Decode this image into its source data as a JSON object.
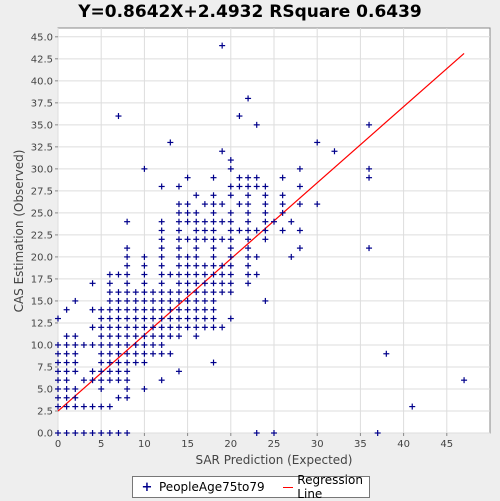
{
  "chart_data": {
    "type": "scatter",
    "title": "Y=0.8642X+2.4932    RSquare 0.6439",
    "xlabel": "SAR Prediction (Expected)",
    "ylabel": "CAS Estimation (Observed)",
    "xlim": [
      0,
      50
    ],
    "ylim": [
      0,
      46
    ],
    "x_ticks": [
      "0",
      "5",
      "10",
      "15",
      "20",
      "25",
      "30",
      "35",
      "40",
      "45"
    ],
    "y_ticks": [
      "0.0",
      "2.5",
      "5.0",
      "7.5",
      "10.0",
      "12.5",
      "15.0",
      "17.5",
      "20.0",
      "22.5",
      "25.0",
      "27.5",
      "30.0",
      "32.5",
      "35.0",
      "37.5",
      "40.0",
      "42.5",
      "45.0"
    ],
    "grid": true,
    "legend_position": "bottom",
    "series": [
      {
        "name": "PeopleAge75to79",
        "kind": "points",
        "color": "#00008b",
        "marker": "plus",
        "points": [
          [
            0,
            0
          ],
          [
            1,
            0
          ],
          [
            2,
            0
          ],
          [
            3,
            0
          ],
          [
            4,
            0
          ],
          [
            5,
            0
          ],
          [
            6,
            0
          ],
          [
            7,
            0
          ],
          [
            8,
            0
          ],
          [
            23,
            0
          ],
          [
            25,
            0
          ],
          [
            37,
            0
          ],
          [
            0,
            3
          ],
          [
            1,
            3
          ],
          [
            2,
            3
          ],
          [
            3,
            3
          ],
          [
            4,
            3
          ],
          [
            5,
            3
          ],
          [
            6,
            3
          ],
          [
            41,
            3
          ],
          [
            0,
            4
          ],
          [
            1,
            4
          ],
          [
            2,
            4
          ],
          [
            7,
            4
          ],
          [
            8,
            4
          ],
          [
            0,
            5
          ],
          [
            1,
            5
          ],
          [
            2,
            5
          ],
          [
            5,
            5
          ],
          [
            8,
            5
          ],
          [
            10,
            5
          ],
          [
            0,
            6
          ],
          [
            1,
            6
          ],
          [
            3,
            6
          ],
          [
            4,
            6
          ],
          [
            5,
            6
          ],
          [
            6,
            6
          ],
          [
            7,
            6
          ],
          [
            8,
            6
          ],
          [
            12,
            6
          ],
          [
            47,
            6
          ],
          [
            0,
            7
          ],
          [
            1,
            7
          ],
          [
            2,
            7
          ],
          [
            4,
            7
          ],
          [
            5,
            7
          ],
          [
            6,
            7
          ],
          [
            7,
            7
          ],
          [
            8,
            7
          ],
          [
            14,
            7
          ],
          [
            0,
            8
          ],
          [
            1,
            8
          ],
          [
            2,
            8
          ],
          [
            5,
            8
          ],
          [
            6,
            8
          ],
          [
            7,
            8
          ],
          [
            8,
            8
          ],
          [
            9,
            8
          ],
          [
            10,
            8
          ],
          [
            18,
            8
          ],
          [
            0,
            9
          ],
          [
            1,
            9
          ],
          [
            2,
            9
          ],
          [
            5,
            9
          ],
          [
            6,
            9
          ],
          [
            7,
            9
          ],
          [
            8,
            9
          ],
          [
            9,
            9
          ],
          [
            10,
            9
          ],
          [
            11,
            9
          ],
          [
            12,
            9
          ],
          [
            13,
            9
          ],
          [
            38,
            9
          ],
          [
            0,
            10
          ],
          [
            1,
            10
          ],
          [
            2,
            10
          ],
          [
            3,
            10
          ],
          [
            4,
            10
          ],
          [
            5,
            10
          ],
          [
            6,
            10
          ],
          [
            7,
            10
          ],
          [
            8,
            10
          ],
          [
            9,
            10
          ],
          [
            10,
            10
          ],
          [
            11,
            10
          ],
          [
            12,
            10
          ],
          [
            1,
            11
          ],
          [
            2,
            11
          ],
          [
            5,
            11
          ],
          [
            6,
            11
          ],
          [
            7,
            11
          ],
          [
            8,
            11
          ],
          [
            9,
            11
          ],
          [
            10,
            11
          ],
          [
            11,
            11
          ],
          [
            12,
            11
          ],
          [
            13,
            11
          ],
          [
            14,
            11
          ],
          [
            16,
            11
          ],
          [
            4,
            12
          ],
          [
            5,
            12
          ],
          [
            6,
            12
          ],
          [
            7,
            12
          ],
          [
            8,
            12
          ],
          [
            9,
            12
          ],
          [
            10,
            12
          ],
          [
            11,
            12
          ],
          [
            12,
            12
          ],
          [
            13,
            12
          ],
          [
            14,
            12
          ],
          [
            15,
            12
          ],
          [
            16,
            12
          ],
          [
            17,
            12
          ],
          [
            18,
            12
          ],
          [
            19,
            12
          ],
          [
            0,
            13
          ],
          [
            5,
            13
          ],
          [
            6,
            13
          ],
          [
            7,
            13
          ],
          [
            8,
            13
          ],
          [
            9,
            13
          ],
          [
            10,
            13
          ],
          [
            11,
            13
          ],
          [
            12,
            13
          ],
          [
            13,
            13
          ],
          [
            14,
            13
          ],
          [
            15,
            13
          ],
          [
            16,
            13
          ],
          [
            17,
            13
          ],
          [
            18,
            13
          ],
          [
            20,
            13
          ],
          [
            1,
            14
          ],
          [
            4,
            14
          ],
          [
            5,
            14
          ],
          [
            6,
            14
          ],
          [
            7,
            14
          ],
          [
            8,
            14
          ],
          [
            9,
            14
          ],
          [
            10,
            14
          ],
          [
            11,
            14
          ],
          [
            12,
            14
          ],
          [
            13,
            14
          ],
          [
            14,
            14
          ],
          [
            15,
            14
          ],
          [
            16,
            14
          ],
          [
            17,
            14
          ],
          [
            18,
            14
          ],
          [
            2,
            15
          ],
          [
            6,
            15
          ],
          [
            7,
            15
          ],
          [
            8,
            15
          ],
          [
            9,
            15
          ],
          [
            10,
            15
          ],
          [
            11,
            15
          ],
          [
            12,
            15
          ],
          [
            13,
            15
          ],
          [
            14,
            15
          ],
          [
            15,
            15
          ],
          [
            16,
            15
          ],
          [
            17,
            15
          ],
          [
            18,
            15
          ],
          [
            24,
            15
          ],
          [
            6,
            16
          ],
          [
            7,
            16
          ],
          [
            8,
            16
          ],
          [
            9,
            16
          ],
          [
            10,
            16
          ],
          [
            11,
            16
          ],
          [
            12,
            16
          ],
          [
            13,
            16
          ],
          [
            14,
            16
          ],
          [
            15,
            16
          ],
          [
            16,
            16
          ],
          [
            17,
            16
          ],
          [
            18,
            16
          ],
          [
            19,
            16
          ],
          [
            20,
            16
          ],
          [
            4,
            17
          ],
          [
            6,
            17
          ],
          [
            8,
            17
          ],
          [
            10,
            17
          ],
          [
            12,
            17
          ],
          [
            14,
            17
          ],
          [
            15,
            17
          ],
          [
            16,
            17
          ],
          [
            17,
            17
          ],
          [
            18,
            17
          ],
          [
            19,
            17
          ],
          [
            20,
            17
          ],
          [
            22,
            17
          ],
          [
            6,
            18
          ],
          [
            7,
            18
          ],
          [
            8,
            18
          ],
          [
            10,
            18
          ],
          [
            12,
            18
          ],
          [
            13,
            18
          ],
          [
            14,
            18
          ],
          [
            15,
            18
          ],
          [
            16,
            18
          ],
          [
            17,
            18
          ],
          [
            18,
            18
          ],
          [
            19,
            18
          ],
          [
            20,
            18
          ],
          [
            22,
            18
          ],
          [
            23,
            18
          ],
          [
            8,
            19
          ],
          [
            10,
            19
          ],
          [
            12,
            19
          ],
          [
            14,
            19
          ],
          [
            15,
            19
          ],
          [
            16,
            19
          ],
          [
            17,
            19
          ],
          [
            18,
            19
          ],
          [
            19,
            19
          ],
          [
            20,
            19
          ],
          [
            22,
            19
          ],
          [
            8,
            20
          ],
          [
            10,
            20
          ],
          [
            12,
            20
          ],
          [
            14,
            20
          ],
          [
            15,
            20
          ],
          [
            16,
            20
          ],
          [
            18,
            20
          ],
          [
            20,
            20
          ],
          [
            22,
            20
          ],
          [
            23,
            20
          ],
          [
            27,
            20
          ],
          [
            8,
            21
          ],
          [
            12,
            21
          ],
          [
            14,
            21
          ],
          [
            16,
            21
          ],
          [
            18,
            21
          ],
          [
            20,
            21
          ],
          [
            22,
            21
          ],
          [
            28,
            21
          ],
          [
            36,
            21
          ],
          [
            12,
            22
          ],
          [
            14,
            22
          ],
          [
            15,
            22
          ],
          [
            16,
            22
          ],
          [
            17,
            22
          ],
          [
            18,
            22
          ],
          [
            19,
            22
          ],
          [
            20,
            22
          ],
          [
            22,
            22
          ],
          [
            24,
            22
          ],
          [
            12,
            23
          ],
          [
            14,
            23
          ],
          [
            16,
            23
          ],
          [
            17,
            23
          ],
          [
            18,
            23
          ],
          [
            20,
            23
          ],
          [
            21,
            23
          ],
          [
            22,
            23
          ],
          [
            23,
            23
          ],
          [
            24,
            23
          ],
          [
            26,
            23
          ],
          [
            28,
            23
          ],
          [
            8,
            24
          ],
          [
            12,
            24
          ],
          [
            14,
            24
          ],
          [
            15,
            24
          ],
          [
            16,
            24
          ],
          [
            17,
            24
          ],
          [
            18,
            24
          ],
          [
            19,
            24
          ],
          [
            20,
            24
          ],
          [
            22,
            24
          ],
          [
            24,
            24
          ],
          [
            25,
            24
          ],
          [
            27,
            24
          ],
          [
            14,
            25
          ],
          [
            15,
            25
          ],
          [
            16,
            25
          ],
          [
            18,
            25
          ],
          [
            20,
            25
          ],
          [
            22,
            25
          ],
          [
            24,
            25
          ],
          [
            26,
            25
          ],
          [
            14,
            26
          ],
          [
            15,
            26
          ],
          [
            17,
            26
          ],
          [
            18,
            26
          ],
          [
            19,
            26
          ],
          [
            21,
            26
          ],
          [
            22,
            26
          ],
          [
            24,
            26
          ],
          [
            26,
            26
          ],
          [
            28,
            26
          ],
          [
            30,
            26
          ],
          [
            16,
            27
          ],
          [
            18,
            27
          ],
          [
            20,
            27
          ],
          [
            22,
            27
          ],
          [
            24,
            27
          ],
          [
            26,
            27
          ],
          [
            12,
            28
          ],
          [
            14,
            28
          ],
          [
            20,
            28
          ],
          [
            21,
            28
          ],
          [
            22,
            28
          ],
          [
            23,
            28
          ],
          [
            24,
            28
          ],
          [
            28,
            28
          ],
          [
            15,
            29
          ],
          [
            18,
            29
          ],
          [
            21,
            29
          ],
          [
            22,
            29
          ],
          [
            23,
            29
          ],
          [
            26,
            29
          ],
          [
            36,
            29
          ],
          [
            10,
            30
          ],
          [
            20,
            30
          ],
          [
            28,
            30
          ],
          [
            36,
            30
          ],
          [
            20,
            31
          ],
          [
            19,
            32
          ],
          [
            32,
            32
          ],
          [
            13,
            33
          ],
          [
            30,
            33
          ],
          [
            23,
            35
          ],
          [
            36,
            35
          ],
          [
            7,
            36
          ],
          [
            21,
            36
          ],
          [
            22,
            38
          ],
          [
            19,
            44
          ]
        ]
      },
      {
        "name": "Regression Line",
        "kind": "line",
        "color": "#ff0000",
        "slope": 0.8642,
        "intercept": 2.4932,
        "x_range": [
          0,
          47
        ]
      }
    ]
  },
  "legend": {
    "points_label": "PeopleAge75to79",
    "line_label": "Regression Line"
  }
}
